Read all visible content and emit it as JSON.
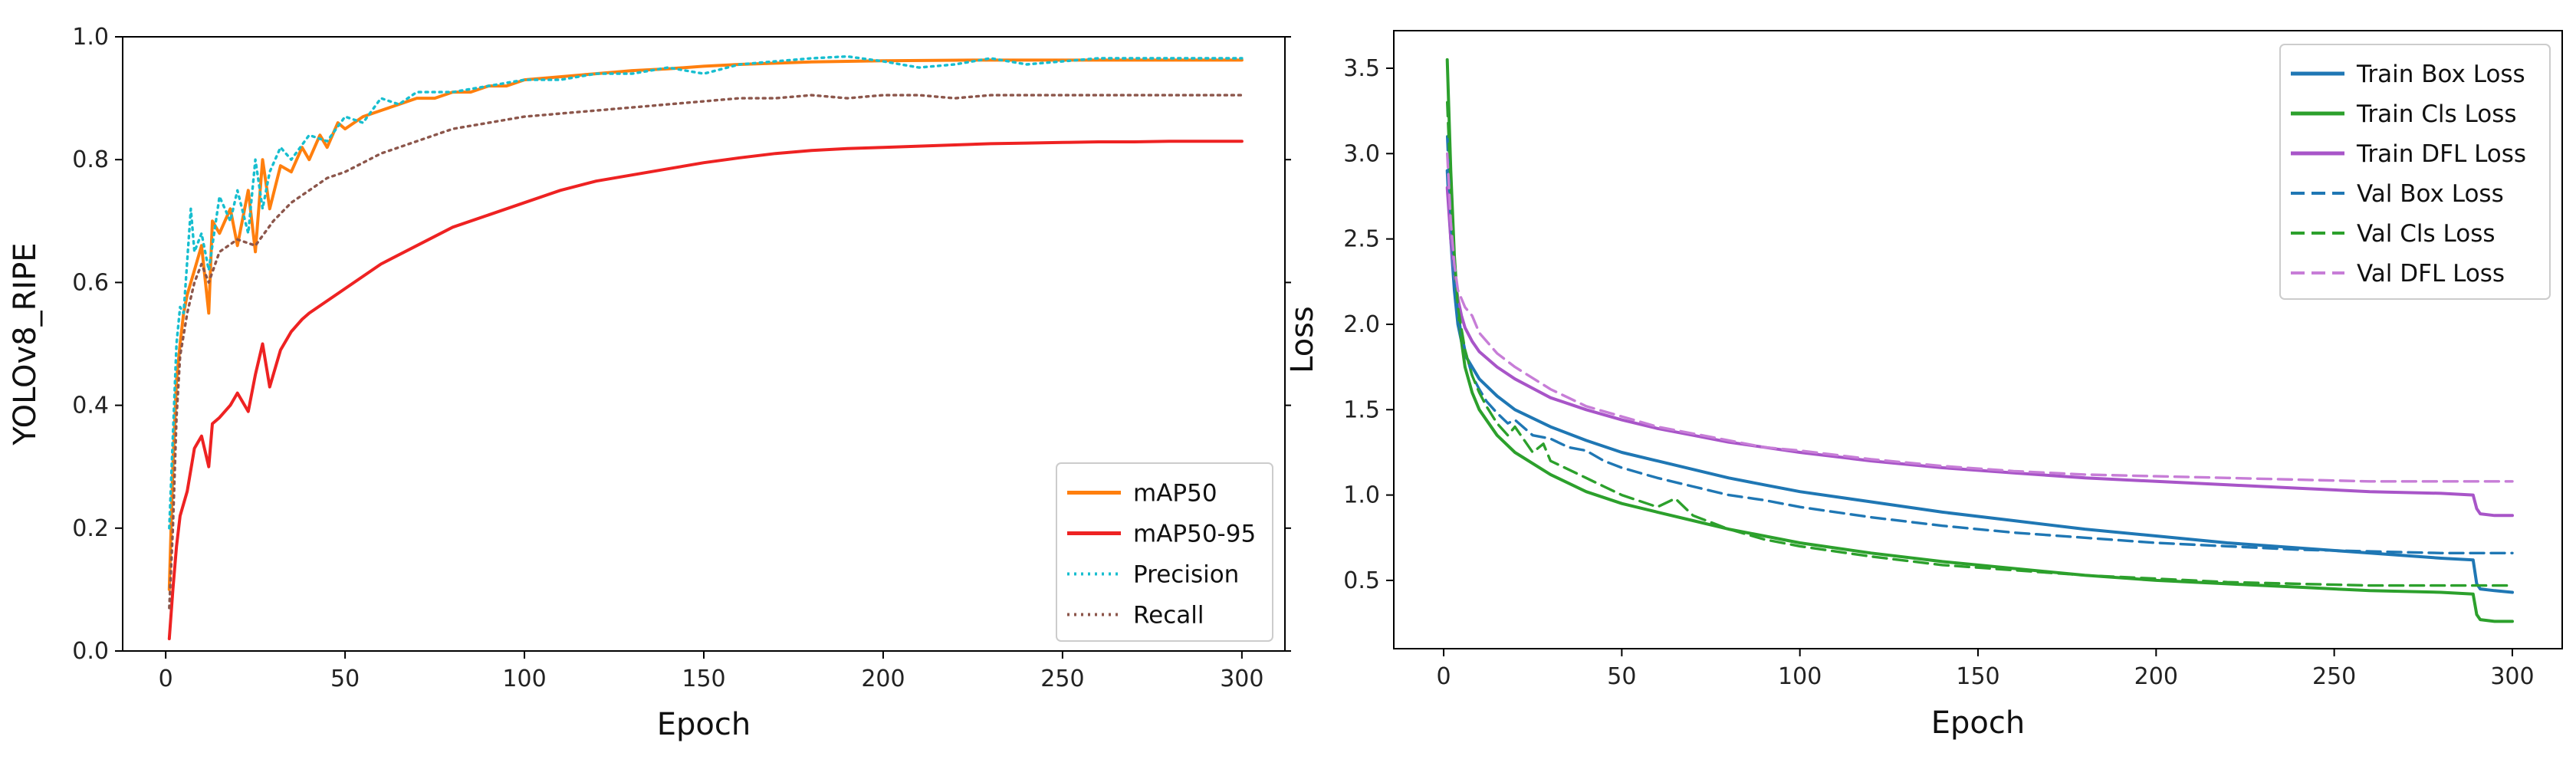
{
  "chart_data": [
    {
      "type": "line",
      "xlabel": "Epoch",
      "ylabel": "YOLOv8_RIPE",
      "xlim": [
        -12,
        312
      ],
      "ylim": [
        0.0,
        1.0
      ],
      "xticks": [
        "0",
        "50",
        "100",
        "150",
        "200",
        "250",
        "300"
      ],
      "xtick_values": [
        0,
        50,
        100,
        150,
        200,
        250,
        300
      ],
      "yticks": [
        "0.0",
        "0.2",
        "0.4",
        "0.6",
        "0.8",
        "1.0"
      ],
      "ytick_values": [
        0.0,
        0.2,
        0.4,
        0.6,
        0.8,
        1.0
      ],
      "legend_position": "bottom-right",
      "series": [
        {
          "name": "mAP50",
          "color": "#ff7f0e",
          "style": "solid",
          "x": [
            1,
            2,
            3,
            4,
            5,
            6,
            8,
            10,
            12,
            13,
            15,
            18,
            20,
            23,
            25,
            27,
            29,
            32,
            35,
            38,
            40,
            43,
            45,
            48,
            50,
            55,
            60,
            65,
            70,
            75,
            80,
            85,
            90,
            95,
            100,
            110,
            120,
            130,
            140,
            150,
            160,
            170,
            180,
            190,
            200,
            225,
            250,
            275,
            300
          ],
          "y": [
            0.1,
            0.3,
            0.44,
            0.5,
            0.55,
            0.58,
            0.62,
            0.66,
            0.55,
            0.7,
            0.68,
            0.72,
            0.66,
            0.75,
            0.65,
            0.8,
            0.72,
            0.79,
            0.78,
            0.82,
            0.8,
            0.84,
            0.82,
            0.86,
            0.85,
            0.87,
            0.88,
            0.89,
            0.9,
            0.9,
            0.91,
            0.91,
            0.92,
            0.92,
            0.93,
            0.935,
            0.94,
            0.945,
            0.948,
            0.952,
            0.955,
            0.957,
            0.959,
            0.96,
            0.961,
            0.962,
            0.962,
            0.962,
            0.962
          ]
        },
        {
          "name": "mAP50-95",
          "color": "#ee2222",
          "style": "solid",
          "x": [
            1,
            2,
            3,
            4,
            6,
            8,
            10,
            12,
            13,
            15,
            18,
            20,
            23,
            25,
            27,
            29,
            32,
            35,
            38,
            40,
            45,
            50,
            55,
            60,
            70,
            80,
            90,
            100,
            110,
            120,
            130,
            140,
            150,
            160,
            170,
            180,
            190,
            200,
            210,
            220,
            230,
            240,
            250,
            260,
            270,
            280,
            290,
            300
          ],
          "y": [
            0.02,
            0.1,
            0.17,
            0.22,
            0.26,
            0.33,
            0.35,
            0.3,
            0.37,
            0.38,
            0.4,
            0.42,
            0.39,
            0.45,
            0.5,
            0.43,
            0.49,
            0.52,
            0.54,
            0.55,
            0.57,
            0.59,
            0.61,
            0.63,
            0.66,
            0.69,
            0.71,
            0.73,
            0.75,
            0.765,
            0.775,
            0.785,
            0.795,
            0.803,
            0.81,
            0.815,
            0.818,
            0.82,
            0.822,
            0.824,
            0.826,
            0.827,
            0.828,
            0.829,
            0.829,
            0.83,
            0.83,
            0.83
          ]
        },
        {
          "name": "Precision",
          "color": "#17becf",
          "style": "dotted",
          "x": [
            1,
            2,
            3,
            4,
            5,
            7,
            8,
            10,
            12,
            15,
            18,
            20,
            23,
            25,
            27,
            29,
            32,
            35,
            40,
            45,
            50,
            55,
            60,
            65,
            70,
            80,
            90,
            100,
            110,
            120,
            130,
            140,
            150,
            160,
            170,
            180,
            190,
            200,
            210,
            220,
            230,
            240,
            250,
            260,
            270,
            280,
            290,
            300
          ],
          "y": [
            0.2,
            0.35,
            0.5,
            0.56,
            0.55,
            0.72,
            0.65,
            0.68,
            0.62,
            0.74,
            0.7,
            0.75,
            0.68,
            0.8,
            0.72,
            0.78,
            0.82,
            0.8,
            0.84,
            0.83,
            0.87,
            0.86,
            0.9,
            0.89,
            0.91,
            0.91,
            0.92,
            0.93,
            0.93,
            0.94,
            0.94,
            0.95,
            0.94,
            0.955,
            0.96,
            0.965,
            0.968,
            0.96,
            0.95,
            0.955,
            0.965,
            0.955,
            0.96,
            0.965,
            0.965,
            0.965,
            0.965,
            0.965
          ]
        },
        {
          "name": "Recall",
          "color": "#8c564b",
          "style": "dotted",
          "x": [
            1,
            2,
            3,
            4,
            6,
            8,
            10,
            12,
            15,
            20,
            25,
            30,
            35,
            40,
            45,
            50,
            60,
            70,
            80,
            90,
            100,
            110,
            120,
            130,
            140,
            150,
            160,
            170,
            180,
            190,
            200,
            210,
            220,
            230,
            240,
            250,
            260,
            270,
            280,
            290,
            300
          ],
          "y": [
            0.07,
            0.2,
            0.38,
            0.48,
            0.55,
            0.6,
            0.63,
            0.6,
            0.65,
            0.67,
            0.66,
            0.7,
            0.73,
            0.75,
            0.77,
            0.78,
            0.81,
            0.83,
            0.85,
            0.86,
            0.87,
            0.875,
            0.88,
            0.885,
            0.89,
            0.895,
            0.9,
            0.9,
            0.905,
            0.9,
            0.905,
            0.905,
            0.9,
            0.905,
            0.905,
            0.905,
            0.905,
            0.905,
            0.905,
            0.905,
            0.905
          ]
        }
      ]
    },
    {
      "type": "line",
      "xlabel": "Epoch",
      "ylabel": "Loss",
      "xlim": [
        -14,
        314
      ],
      "ylim": [
        0.1,
        3.72
      ],
      "xticks": [
        "0",
        "50",
        "100",
        "150",
        "200",
        "250",
        "300"
      ],
      "xtick_values": [
        0,
        50,
        100,
        150,
        200,
        250,
        300
      ],
      "yticks": [
        "0.5",
        "1.0",
        "1.5",
        "2.0",
        "2.5",
        "3.0",
        "3.5"
      ],
      "ytick_values": [
        0.5,
        1.0,
        1.5,
        2.0,
        2.5,
        3.0,
        3.5
      ],
      "legend_position": "top-right",
      "series": [
        {
          "name": "Train Box Loss",
          "color": "#1f77b4",
          "style": "solid",
          "x": [
            1,
            2,
            3,
            4,
            5,
            6,
            8,
            10,
            15,
            20,
            30,
            40,
            50,
            60,
            70,
            80,
            90,
            100,
            120,
            140,
            160,
            180,
            200,
            220,
            240,
            260,
            280,
            289,
            290,
            291,
            295,
            300
          ],
          "y": [
            2.9,
            2.5,
            2.2,
            2.0,
            1.9,
            1.82,
            1.75,
            1.68,
            1.58,
            1.5,
            1.4,
            1.32,
            1.25,
            1.2,
            1.15,
            1.1,
            1.06,
            1.02,
            0.96,
            0.9,
            0.85,
            0.8,
            0.76,
            0.72,
            0.69,
            0.66,
            0.63,
            0.62,
            0.48,
            0.45,
            0.44,
            0.43
          ]
        },
        {
          "name": "Train Cls Loss",
          "color": "#2ca02c",
          "style": "solid",
          "x": [
            1,
            2,
            3,
            4,
            5,
            6,
            8,
            10,
            15,
            20,
            30,
            40,
            50,
            60,
            70,
            80,
            90,
            100,
            120,
            140,
            160,
            180,
            200,
            220,
            240,
            260,
            280,
            289,
            290,
            291,
            295,
            300
          ],
          "y": [
            3.55,
            2.9,
            2.4,
            2.1,
            1.9,
            1.75,
            1.6,
            1.5,
            1.35,
            1.25,
            1.12,
            1.02,
            0.95,
            0.9,
            0.85,
            0.8,
            0.76,
            0.72,
            0.66,
            0.61,
            0.57,
            0.53,
            0.5,
            0.48,
            0.46,
            0.44,
            0.43,
            0.42,
            0.3,
            0.27,
            0.26,
            0.26
          ]
        },
        {
          "name": "Train DFL Loss",
          "color": "#a855c8",
          "style": "solid",
          "x": [
            1,
            2,
            3,
            4,
            5,
            6,
            8,
            10,
            15,
            20,
            30,
            40,
            50,
            60,
            70,
            80,
            90,
            100,
            120,
            140,
            160,
            180,
            200,
            220,
            240,
            260,
            280,
            289,
            290,
            291,
            295,
            300
          ],
          "y": [
            2.8,
            2.5,
            2.3,
            2.15,
            2.05,
            1.98,
            1.9,
            1.84,
            1.75,
            1.68,
            1.57,
            1.5,
            1.44,
            1.39,
            1.35,
            1.31,
            1.28,
            1.25,
            1.2,
            1.16,
            1.13,
            1.1,
            1.08,
            1.06,
            1.04,
            1.02,
            1.01,
            1.0,
            0.92,
            0.89,
            0.88,
            0.88
          ]
        },
        {
          "name": "Val Box Loss",
          "color": "#1f77b4",
          "style": "dashed",
          "x": [
            1,
            2,
            3,
            4,
            6,
            8,
            10,
            12,
            15,
            18,
            20,
            25,
            30,
            35,
            40,
            45,
            50,
            60,
            70,
            80,
            90,
            100,
            120,
            140,
            160,
            180,
            200,
            220,
            240,
            260,
            280,
            290,
            300
          ],
          "y": [
            3.1,
            2.6,
            2.3,
            2.05,
            1.85,
            1.7,
            1.62,
            1.55,
            1.48,
            1.42,
            1.44,
            1.35,
            1.33,
            1.28,
            1.26,
            1.2,
            1.16,
            1.1,
            1.05,
            1.0,
            0.97,
            0.93,
            0.87,
            0.82,
            0.78,
            0.75,
            0.72,
            0.7,
            0.68,
            0.67,
            0.66,
            0.66,
            0.66
          ]
        },
        {
          "name": "Val Cls Loss",
          "color": "#2ca02c",
          "style": "dashed",
          "x": [
            1,
            2,
            3,
            4,
            6,
            8,
            10,
            12,
            15,
            18,
            20,
            25,
            28,
            30,
            35,
            40,
            45,
            50,
            60,
            65,
            70,
            80,
            90,
            100,
            120,
            140,
            160,
            180,
            200,
            220,
            240,
            260,
            280,
            290,
            300
          ],
          "y": [
            3.3,
            2.8,
            2.4,
            2.1,
            1.85,
            1.7,
            1.6,
            1.52,
            1.42,
            1.35,
            1.4,
            1.25,
            1.3,
            1.2,
            1.15,
            1.1,
            1.05,
            1.0,
            0.93,
            0.98,
            0.88,
            0.8,
            0.74,
            0.7,
            0.64,
            0.59,
            0.56,
            0.53,
            0.51,
            0.49,
            0.48,
            0.47,
            0.47,
            0.47,
            0.47
          ]
        },
        {
          "name": "Val DFL Loss",
          "color": "#c77dd7",
          "style": "dashed",
          "x": [
            1,
            2,
            3,
            4,
            6,
            8,
            10,
            15,
            20,
            30,
            40,
            50,
            60,
            70,
            80,
            90,
            100,
            120,
            140,
            160,
            180,
            200,
            220,
            240,
            260,
            280,
            290,
            300
          ],
          "y": [
            3.0,
            2.6,
            2.35,
            2.2,
            2.1,
            2.05,
            1.95,
            1.83,
            1.75,
            1.62,
            1.52,
            1.46,
            1.4,
            1.36,
            1.32,
            1.28,
            1.26,
            1.21,
            1.17,
            1.14,
            1.12,
            1.11,
            1.1,
            1.09,
            1.08,
            1.08,
            1.08,
            1.08
          ]
        }
      ]
    }
  ]
}
